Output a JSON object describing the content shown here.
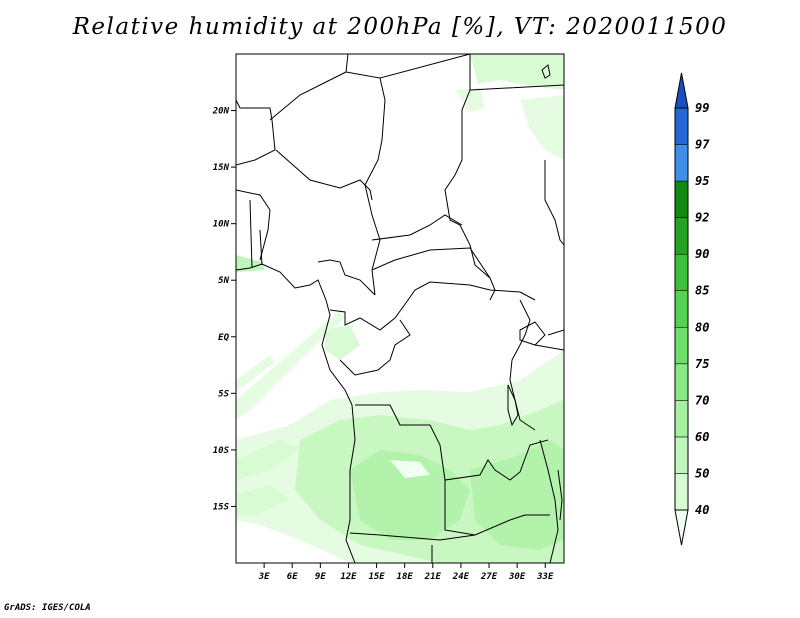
{
  "title": "Relative humidity at 200hPa [%], VT: 2020011500",
  "credit": "GrADS: IGES/COLA",
  "map": {
    "lon_range": [
      0,
      35
    ],
    "lat_range": [
      -20,
      25
    ],
    "lon_ticks": [
      "3E",
      "6E",
      "9E",
      "12E",
      "15E",
      "18E",
      "21E",
      "24E",
      "27E",
      "30E",
      "33E"
    ],
    "lat_ticks": [
      "20N",
      "15N",
      "10N",
      "5N",
      "EQ",
      "5S",
      "10S",
      "15S"
    ]
  },
  "colorbar": {
    "levels": [
      "40",
      "50",
      "60",
      "70",
      "75",
      "80",
      "85",
      "90",
      "92",
      "95",
      "97",
      "99"
    ],
    "colors": [
      "#f0fff0",
      "#d8fbd4",
      "#c0f5bc",
      "#a6f0a0",
      "#8ae886",
      "#6fde6b",
      "#55d251",
      "#3cbf39",
      "#24a222",
      "#108a10",
      "#3f8fe6",
      "#2468d6",
      "#1a4fc0"
    ]
  }
}
